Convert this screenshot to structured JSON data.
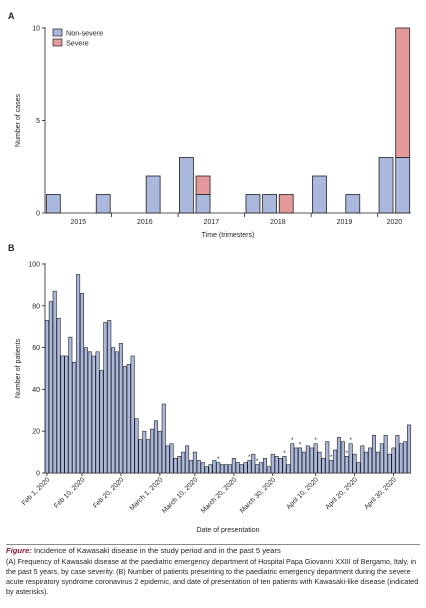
{
  "colors": {
    "non_severe": "#a9b8dc",
    "severe": "#e4999b",
    "stroke": "#231f20",
    "caption_accent": "#8a1538"
  },
  "chart_data": [
    {
      "type": "bar",
      "stacked": true,
      "panel_label": "A",
      "title": "",
      "xlabel": "Time (trimesters)",
      "ylabel": "Number of cases",
      "ylim": [
        0,
        10
      ],
      "yticks": [
        0,
        5,
        10
      ],
      "year_labels": [
        "2015",
        "2016",
        "2017",
        "2018",
        "2019",
        "2020"
      ],
      "trimesters_per_year": 4,
      "categories": [
        "2015 Q1",
        "2015 Q2",
        "2015 Q3",
        "2015 Q4",
        "2016 Q1",
        "2016 Q2",
        "2016 Q3",
        "2016 Q4",
        "2017 Q1",
        "2017 Q2",
        "2017 Q3",
        "2017 Q4",
        "2018 Q1",
        "2018 Q2",
        "2018 Q3",
        "2018 Q4",
        "2019 Q1",
        "2019 Q2",
        "2019 Q3",
        "2019 Q4",
        "2020 Q1",
        "2020 Q2"
      ],
      "series": [
        {
          "name": "Non-severe",
          "values": [
            1,
            0,
            0,
            1,
            0,
            0,
            2,
            0,
            3,
            1,
            0,
            0,
            1,
            1,
            0,
            0,
            2,
            0,
            1,
            0,
            3,
            3
          ]
        },
        {
          "name": "Severe",
          "values": [
            0,
            0,
            0,
            0,
            0,
            0,
            0,
            0,
            0,
            1,
            0,
            0,
            0,
            0,
            1,
            0,
            0,
            0,
            0,
            0,
            0,
            7
          ]
        }
      ],
      "legend_position": "top-left",
      "grid": false
    },
    {
      "type": "bar",
      "panel_label": "B",
      "title": "",
      "xlabel": "Date of presentation",
      "ylabel": "Number of patients",
      "ylim": [
        0,
        100
      ],
      "yticks": [
        0,
        20,
        40,
        60,
        80,
        100
      ],
      "x_start": "2020-02-01",
      "x_end": "2020-04-30",
      "xtick_dates": [
        "2020-02-01",
        "2020-02-10",
        "2020-02-20",
        "2020-03-01",
        "2020-03-10",
        "2020-03-20",
        "2020-03-30",
        "2020-04-10",
        "2020-04-20",
        "2020-04-30"
      ],
      "xtick_labels": [
        "Feb 1, 2020",
        "Feb 10, 2020",
        "Feb 20, 2020",
        "March 1, 2020",
        "March 10, 2020",
        "March 20, 2020",
        "March 30, 2020",
        "April 10, 2020",
        "April 20, 2020",
        "April 30, 2020"
      ],
      "values": [
        73,
        82,
        87,
        74,
        56,
        56,
        65,
        53,
        95,
        86,
        60,
        58,
        56,
        58,
        49,
        72,
        73,
        60,
        58,
        62,
        51,
        52,
        56,
        26,
        16,
        20,
        16,
        21,
        25,
        20,
        33,
        13,
        14,
        7,
        8,
        10,
        13,
        6,
        10,
        6,
        5,
        3,
        4,
        6,
        5,
        4,
        4,
        4,
        7,
        5,
        4,
        5,
        6,
        9,
        4,
        5,
        7,
        3,
        9,
        8,
        7,
        8,
        4,
        14,
        12,
        12,
        10,
        13,
        12,
        14,
        10,
        7,
        15,
        6,
        11,
        17,
        15,
        8,
        14,
        9,
        5,
        13,
        10,
        12,
        18,
        10,
        14,
        18,
        9,
        12,
        18,
        14,
        15,
        23
      ],
      "asterisk_dates": [
        "2020-03-16",
        "2020-03-24",
        "2020-03-26",
        "2020-04-02",
        "2020-04-04",
        "2020-04-06",
        "2020-04-10",
        "2020-04-14",
        "2020-04-18",
        "2020-04-19"
      ],
      "asterisk_label": "*",
      "grid": false
    }
  ],
  "caption": {
    "title_label": "Figure:",
    "title_text": " Incidence of Kawasaki disease in the study period and in the past 5 years",
    "body": "(A) Frequency of Kawasaki disease at the paediatric emergency department of Hospital Papa Giovanni XXIII of Bergamo, Italy, in the past 5 years, by case severity. (B) Number of patients presenting to the paediatric emergency department during the severe acute respiratory syndrome coronavirus 2 epidemic, and date of presentation of ten patients with Kawasaki-like disease (indicated by asterisks)."
  }
}
